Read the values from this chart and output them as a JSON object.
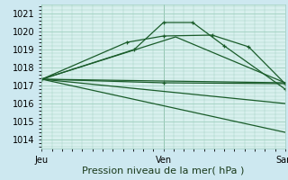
{
  "bg_color": "#cde8f0",
  "plot_bg_color": "#d8f0ee",
  "grid_color": "#9fcfbf",
  "line_color": "#1a5c2a",
  "xlabel": "Pression niveau de la mer( hPa )",
  "xlabel_fontsize": 8,
  "tick_fontsize": 7,
  "ylim": [
    1013.5,
    1021.5
  ],
  "yticks": [
    1014,
    1015,
    1016,
    1017,
    1018,
    1019,
    1020,
    1021
  ],
  "xtick_labels": [
    "Jeu",
    "Ven",
    "Sam"
  ],
  "xtick_positions": [
    0,
    0.5,
    1.0
  ],
  "vline_positions": [
    0,
    0.5,
    1.0
  ],
  "series": [
    {
      "points": [
        [
          0,
          1017.35
        ],
        [
          0.5,
          1017.15
        ],
        [
          1.0,
          1017.1
        ]
      ],
      "marker": true
    },
    {
      "points": [
        [
          0,
          1017.35
        ],
        [
          0.35,
          1019.4
        ],
        [
          0.5,
          1019.75
        ],
        [
          0.7,
          1019.8
        ],
        [
          0.85,
          1019.15
        ],
        [
          1.0,
          1017.1
        ]
      ],
      "marker": true
    },
    {
      "points": [
        [
          0,
          1017.35
        ],
        [
          0.38,
          1019.0
        ],
        [
          0.5,
          1020.5
        ],
        [
          0.62,
          1020.5
        ],
        [
          0.75,
          1019.2
        ],
        [
          1.0,
          1016.8
        ]
      ],
      "marker": true
    },
    {
      "points": [
        [
          0,
          1017.35
        ],
        [
          1.0,
          1017.15
        ]
      ],
      "marker": false
    },
    {
      "points": [
        [
          0,
          1017.35
        ],
        [
          0.55,
          1019.7
        ],
        [
          1.0,
          1017.15
        ]
      ],
      "marker": false
    },
    {
      "points": [
        [
          0,
          1017.35
        ],
        [
          1.0,
          1014.4
        ]
      ],
      "marker": false
    },
    {
      "points": [
        [
          0,
          1017.35
        ],
        [
          1.0,
          1016.0
        ]
      ],
      "marker": false
    }
  ]
}
